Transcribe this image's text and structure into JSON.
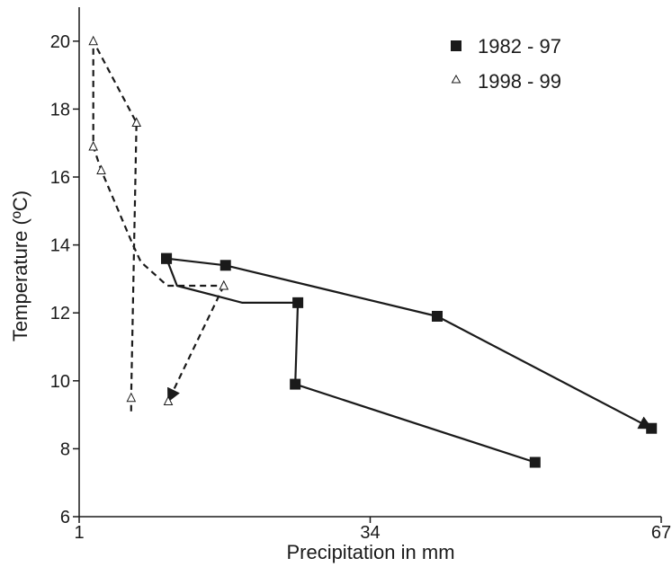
{
  "chart_data": {
    "type": "line",
    "xlabel": "Precipitation in mm",
    "ylabel": "Temperature (ºC)",
    "xlim": [
      1,
      67
    ],
    "ylim": [
      6,
      21
    ],
    "x_ticks": [
      {
        "value": 1,
        "label": "1"
      },
      {
        "value": 34,
        "label": "34"
      },
      {
        "value": 67,
        "label": "67"
      }
    ],
    "y_ticks": [
      {
        "value": 6,
        "label": "6"
      },
      {
        "value": 8,
        "label": "8"
      },
      {
        "value": 10,
        "label": "10"
      },
      {
        "value": 12,
        "label": "12"
      },
      {
        "value": 14,
        "label": "14"
      },
      {
        "value": 16,
        "label": "16"
      },
      {
        "value": 18,
        "label": "18"
      },
      {
        "value": 20,
        "label": "20"
      }
    ],
    "grid": false,
    "legend_position": "top-right",
    "series": [
      {
        "name": "1982 - 97",
        "marker": "square",
        "line_style": "solid",
        "color": "#1a1a1a",
        "points": [
          {
            "x": 10.9,
            "y": 13.6,
            "marker": true
          },
          {
            "x": 12.1,
            "y": 12.8,
            "marker": false
          },
          {
            "x": 19.5,
            "y": 12.3,
            "marker": false
          },
          {
            "x": 25.8,
            "y": 12.3,
            "marker": true
          },
          {
            "x": 25.5,
            "y": 9.9,
            "marker": true
          },
          {
            "x": 52.7,
            "y": 7.6,
            "marker": true
          }
        ]
      },
      {
        "name": "1982 - 97",
        "marker": "square",
        "line_style": "solid",
        "color": "#1a1a1a",
        "arrow_end": true,
        "points": [
          {
            "x": 10.9,
            "y": 13.6,
            "marker": true
          },
          {
            "x": 17.6,
            "y": 13.4,
            "marker": true
          },
          {
            "x": 41.6,
            "y": 11.9,
            "marker": true
          },
          {
            "x": 65.9,
            "y": 8.6,
            "marker": true
          }
        ]
      },
      {
        "name": "1998 - 99",
        "marker": "triangle-open",
        "line_style": "dashed",
        "color": "#1a1a1a",
        "points": [
          {
            "x": 6.9,
            "y": 9.1,
            "marker": false
          },
          {
            "x": 6.9,
            "y": 9.5,
            "marker": true
          },
          {
            "x": 7.5,
            "y": 17.6,
            "marker": true
          },
          {
            "x": 2.6,
            "y": 20.0,
            "marker": true
          },
          {
            "x": 2.6,
            "y": 16.9,
            "marker": true
          },
          {
            "x": 3.5,
            "y": 16.2,
            "marker": true
          },
          {
            "x": 7.1,
            "y": 14.0,
            "marker": false
          },
          {
            "x": 8.0,
            "y": 13.5,
            "marker": false
          },
          {
            "x": 11.0,
            "y": 12.8,
            "marker": false
          },
          {
            "x": 17.4,
            "y": 12.8,
            "marker": true
          }
        ]
      },
      {
        "name": "1998 - 99",
        "marker": "triangle-open",
        "line_style": "dashed",
        "color": "#1a1a1a",
        "arrow_end": true,
        "points": [
          {
            "x": 17.4,
            "y": 12.8,
            "marker": true
          },
          {
            "x": 11.1,
            "y": 9.4,
            "marker": true
          }
        ]
      }
    ],
    "legend": [
      {
        "label": "1982 - 97",
        "marker": "square"
      },
      {
        "label": "1998 - 99",
        "marker": "triangle-open"
      }
    ]
  }
}
